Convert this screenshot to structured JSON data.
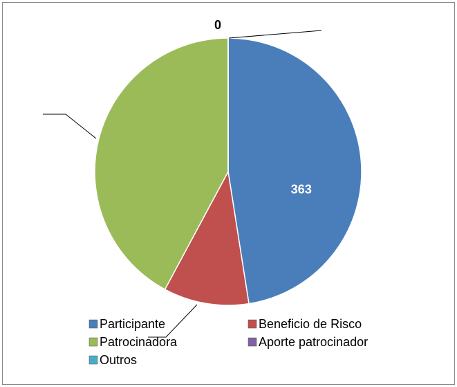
{
  "chart_data": {
    "type": "pie",
    "categories": [
      "Participante",
      "Beneficio de Risco",
      "Patrocinadora",
      "Aporte patrocinador",
      "Outros"
    ],
    "values": [
      363,
      79,
      322,
      0,
      0
    ],
    "value_labels": [
      "363",
      null,
      null,
      "0",
      null
    ],
    "colors": [
      "#4a7ebb",
      "#c0504d",
      "#9bbb59",
      "#8064a2",
      "#4bacc6"
    ]
  }
}
